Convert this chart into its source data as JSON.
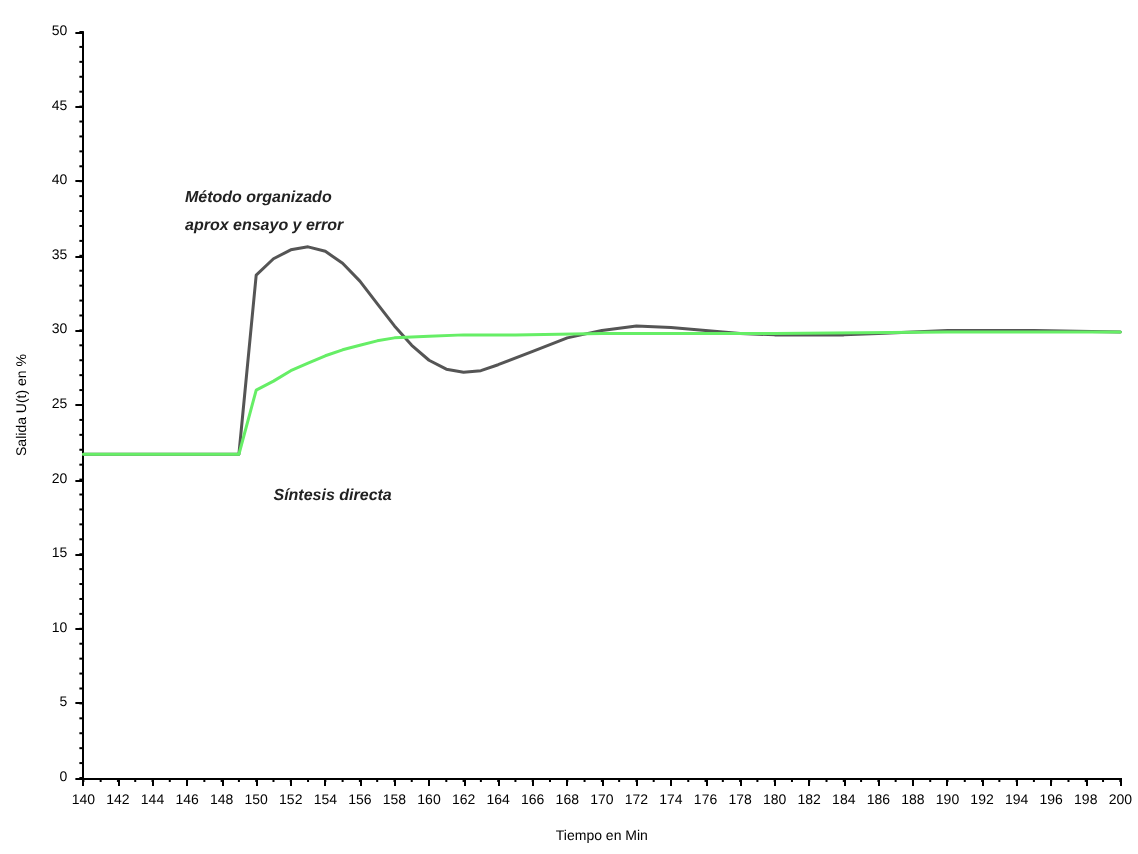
{
  "chart_data": {
    "type": "line",
    "xlabel": "Tiempo en Min",
    "ylabel": "Salida U(t) en %",
    "xlim": [
      140,
      200
    ],
    "xticks": [
      140,
      142,
      144,
      146,
      148,
      150,
      152,
      154,
      156,
      158,
      160,
      162,
      164,
      166,
      168,
      170,
      172,
      174,
      176,
      178,
      180,
      182,
      184,
      186,
      188,
      190,
      192,
      194,
      196,
      198,
      200
    ],
    "ylim": [
      0,
      50
    ],
    "yticks": [
      0,
      5,
      10,
      15,
      20,
      25,
      30,
      35,
      40,
      45,
      50
    ],
    "grid": false,
    "legend": false,
    "marker": "none",
    "line_style": "solid",
    "series": [
      {
        "name": "Método organizado\naprox ensayo y error",
        "color": "#555555",
        "x": [
          140,
          149,
          150,
          151,
          152,
          153,
          154,
          155,
          156,
          157,
          158,
          159,
          160,
          161,
          162,
          163,
          164,
          166,
          168,
          170,
          172,
          174,
          176,
          178,
          180,
          182,
          184,
          186,
          188,
          190,
          195,
          200
        ],
        "values": [
          21.7,
          21.7,
          33.7,
          34.8,
          35.4,
          35.6,
          35.3,
          34.5,
          33.3,
          31.8,
          30.3,
          29.0,
          28.0,
          27.4,
          27.2,
          27.3,
          27.7,
          28.6,
          29.5,
          30.0,
          30.3,
          30.2,
          30.0,
          29.8,
          29.7,
          29.7,
          29.7,
          29.8,
          29.9,
          30.0,
          30.0,
          29.9
        ]
      },
      {
        "name": "Síntesis directa",
        "color": "#66ee66",
        "x": [
          140,
          149,
          150,
          151,
          152,
          153,
          154,
          155,
          156,
          157,
          158,
          160,
          162,
          165,
          170,
          180,
          190,
          200
        ],
        "values": [
          21.7,
          21.7,
          26.0,
          26.6,
          27.3,
          27.8,
          28.3,
          28.7,
          29.0,
          29.3,
          29.5,
          29.6,
          29.7,
          29.7,
          29.8,
          29.8,
          29.9,
          29.9
        ]
      }
    ]
  }
}
